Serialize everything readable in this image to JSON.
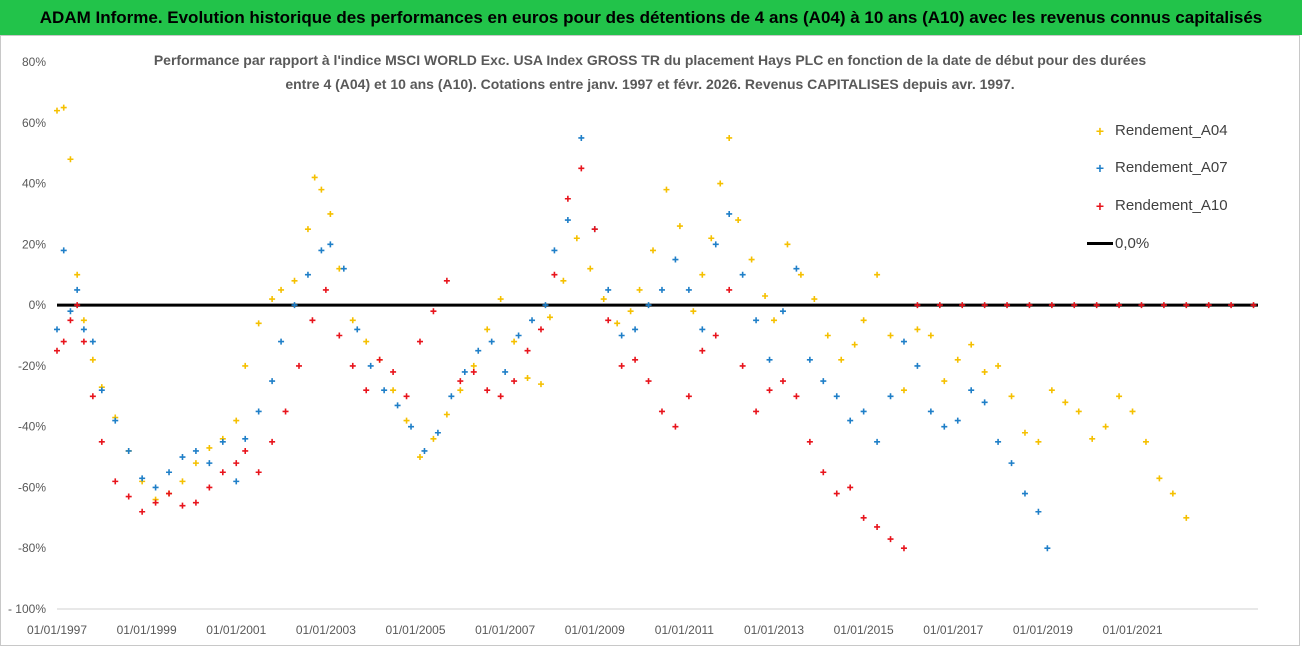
{
  "banner": {
    "title": "ADAM Informe. Evolution historique des performances en euros pour des détentions de 4 ans (A04) à 10 ans (A10) avec les revenus connus capitalisés"
  },
  "chart_data": {
    "type": "scatter",
    "title_line1": "Performance par rapport à l'indice MSCI WORLD Exc. USA Index GROSS TR  du placement Hays PLC en fonction de la date de début pour des durées",
    "title_line2": "entre 4 (A04) et 10 ans (A10). Cotations entre janv. 1997 et févr. 2026. Revenus CAPITALISES depuis avr. 1997.",
    "xlabel": "",
    "ylabel": "",
    "xlim": [
      1997.0,
      2023.8
    ],
    "ylim": [
      -100,
      80
    ],
    "y_ticks": [
      {
        "value": 80,
        "label": "80%"
      },
      {
        "value": 60,
        "label": "60%"
      },
      {
        "value": 40,
        "label": "40%"
      },
      {
        "value": 20,
        "label": "20%"
      },
      {
        "value": 0,
        "label": "0%"
      },
      {
        "value": -20,
        "label": "-20%"
      },
      {
        "value": -40,
        "label": "-40%"
      },
      {
        "value": -60,
        "label": "-60%"
      },
      {
        "value": -80,
        "label": "-80%"
      },
      {
        "value": -100,
        "label": "- 100%"
      }
    ],
    "x_ticks": [
      {
        "value": 1997.0,
        "label": "01/01/1997"
      },
      {
        "value": 1999.0,
        "label": "01/01/1999"
      },
      {
        "value": 2001.0,
        "label": "01/01/2001"
      },
      {
        "value": 2003.0,
        "label": "01/01/2003"
      },
      {
        "value": 2005.0,
        "label": "01/01/2005"
      },
      {
        "value": 2007.0,
        "label": "01/01/2007"
      },
      {
        "value": 2009.0,
        "label": "01/01/2009"
      },
      {
        "value": 2011.0,
        "label": "01/01/2011"
      },
      {
        "value": 2013.0,
        "label": "01/01/2013"
      },
      {
        "value": 2015.0,
        "label": "01/01/2015"
      },
      {
        "value": 2017.0,
        "label": "01/01/2017"
      },
      {
        "value": 2019.0,
        "label": "01/01/2019"
      },
      {
        "value": 2021.0,
        "label": "01/01/2021"
      }
    ],
    "grid": false,
    "legend_position": "top-right",
    "series": [
      {
        "name": "Rendement_A04",
        "color": "#f5c000",
        "marker": "+",
        "x": [
          1997.0,
          1997.15,
          1997.3,
          1997.45,
          1997.6,
          1997.8,
          1998.0,
          1998.3,
          1998.6,
          1998.9,
          1999.2,
          1999.5,
          1999.8,
          2000.1,
          2000.4,
          2000.7,
          2001.0,
          2001.2,
          2001.5,
          2001.8,
          2002.0,
          2002.3,
          2002.6,
          2002.75,
          2002.9,
          2003.1,
          2003.3,
          2003.6,
          2003.9,
          2004.2,
          2004.5,
          2004.8,
          2005.1,
          2005.4,
          2005.7,
          2006.0,
          2006.3,
          2006.6,
          2006.9,
          2007.2,
          2007.5,
          2007.8,
          2008.0,
          2008.3,
          2008.6,
          2008.9,
          2009.2,
          2009.5,
          2009.8,
          2010.0,
          2010.3,
          2010.6,
          2010.9,
          2011.2,
          2011.4,
          2011.6,
          2011.8,
          2012.0,
          2012.2,
          2012.5,
          2012.8,
          2013.0,
          2013.3,
          2013.6,
          2013.9,
          2014.2,
          2014.5,
          2014.8,
          2015.0,
          2015.3,
          2015.6,
          2015.9,
          2016.2,
          2016.5,
          2016.8,
          2017.1,
          2017.4,
          2017.7,
          2018.0,
          2018.3,
          2018.6,
          2018.9,
          2019.2,
          2019.5,
          2019.8,
          2020.1,
          2020.4,
          2020.7,
          2021.0,
          2021.3,
          2021.6,
          2021.9,
          2022.2
        ],
        "y": [
          64,
          65,
          48,
          10,
          -5,
          -18,
          -27,
          -37,
          -48,
          -58,
          -64,
          -62,
          -58,
          -52,
          -47,
          -44,
          -38,
          -20,
          -6,
          2,
          5,
          8,
          25,
          42,
          38,
          30,
          12,
          -5,
          -12,
          -18,
          -28,
          -38,
          -50,
          -44,
          -36,
          -28,
          -20,
          -8,
          2,
          -12,
          -24,
          -26,
          -4,
          8,
          22,
          12,
          2,
          -6,
          -2,
          5,
          18,
          38,
          26,
          -2,
          10,
          22,
          40,
          55,
          28,
          15,
          3,
          -5,
          20,
          10,
          2,
          -10,
          -18,
          -13,
          -5,
          10,
          -10,
          -28,
          -8,
          -10,
          -25,
          -18,
          -13,
          -22,
          -20,
          -30,
          -42,
          -45,
          -28,
          -32,
          -35,
          -44,
          -40,
          -30,
          -35,
          -45,
          -57,
          -62,
          -70
        ]
      },
      {
        "name": "Rendement_A07",
        "color": "#1f7fc8",
        "marker": "+",
        "x": [
          1997.0,
          1997.15,
          1997.3,
          1997.45,
          1997.6,
          1997.8,
          1998.0,
          1998.3,
          1998.6,
          1998.9,
          1999.2,
          1999.5,
          1999.8,
          2000.1,
          2000.4,
          2000.7,
          2001.0,
          2001.2,
          2001.5,
          2001.8,
          2002.0,
          2002.3,
          2002.6,
          2002.9,
          2003.1,
          2003.4,
          2003.7,
          2004.0,
          2004.3,
          2004.6,
          2004.9,
          2005.2,
          2005.5,
          2005.8,
          2006.1,
          2006.4,
          2006.7,
          2007.0,
          2007.3,
          2007.6,
          2007.9,
          2008.1,
          2008.4,
          2008.7,
          2009.0,
          2009.3,
          2009.6,
          2009.9,
          2010.2,
          2010.5,
          2010.8,
          2011.1,
          2011.4,
          2011.7,
          2012.0,
          2012.3,
          2012.6,
          2012.9,
          2013.2,
          2013.5,
          2013.8,
          2014.1,
          2014.4,
          2014.7,
          2015.0,
          2015.3,
          2015.6,
          2015.9,
          2016.2,
          2016.5,
          2016.8,
          2017.1,
          2017.4,
          2017.7,
          2018.0,
          2018.3,
          2018.6,
          2018.9,
          2019.1
        ],
        "y": [
          -8,
          18,
          -2,
          5,
          -8,
          -12,
          -28,
          -38,
          -48,
          -57,
          -60,
          -55,
          -50,
          -48,
          -52,
          -45,
          -58,
          -44,
          -35,
          -25,
          -12,
          0,
          10,
          18,
          20,
          12,
          -8,
          -20,
          -28,
          -33,
          -40,
          -48,
          -42,
          -30,
          -22,
          -15,
          -12,
          -22,
          -10,
          -5,
          0,
          18,
          28,
          55,
          25,
          5,
          -10,
          -8,
          0,
          5,
          15,
          5,
          -8,
          20,
          30,
          10,
          -5,
          -18,
          -2,
          12,
          -18,
          -25,
          -30,
          -38,
          -35,
          -45,
          -30,
          -12,
          -20,
          -35,
          -40,
          -38,
          -28,
          -32,
          -45,
          -52,
          -62,
          -68,
          -80
        ]
      },
      {
        "name": "Rendement_A10",
        "color": "#e8141c",
        "marker": "+",
        "x": [
          1997.0,
          1997.15,
          1997.3,
          1997.45,
          1997.6,
          1997.8,
          1998.0,
          1998.3,
          1998.6,
          1998.9,
          1999.2,
          1999.5,
          1999.8,
          2000.1,
          2000.4,
          2000.7,
          2001.0,
          2001.2,
          2001.5,
          2001.8,
          2002.1,
          2002.4,
          2002.7,
          2003.0,
          2003.3,
          2003.6,
          2003.9,
          2004.2,
          2004.5,
          2004.8,
          2005.1,
          2005.4,
          2005.7,
          2006.0,
          2006.3,
          2006.6,
          2006.9,
          2007.2,
          2007.5,
          2007.8,
          2008.1,
          2008.4,
          2008.7,
          2009.0,
          2009.3,
          2009.6,
          2009.9,
          2010.2,
          2010.5,
          2010.8,
          2011.1,
          2011.4,
          2011.7,
          2012.0,
          2012.3,
          2012.6,
          2012.9,
          2013.2,
          2013.5,
          2013.8,
          2014.1,
          2014.4,
          2014.7,
          2015.0,
          2015.3,
          2015.6,
          2015.9,
          2016.2,
          2016.7,
          2017.2,
          2017.7,
          2018.2,
          2018.7,
          2019.2,
          2019.7,
          2020.2,
          2020.7,
          2021.2,
          2021.7,
          2022.2,
          2022.7,
          2023.2,
          2023.7
        ],
        "y": [
          -15,
          -12,
          -5,
          0,
          -12,
          -30,
          -45,
          -58,
          -63,
          -68,
          -65,
          -62,
          -66,
          -65,
          -60,
          -55,
          -52,
          -48,
          -55,
          -45,
          -35,
          -20,
          -5,
          5,
          -10,
          -20,
          -28,
          -18,
          -22,
          -30,
          -12,
          -2,
          8,
          -25,
          -22,
          -28,
          -30,
          -25,
          -15,
          -8,
          10,
          35,
          45,
          25,
          -5,
          -20,
          -18,
          -25,
          -35,
          -40,
          -30,
          -15,
          -10,
          5,
          -20,
          -35,
          -28,
          -25,
          -30,
          -45,
          -55,
          -62,
          -60,
          -70,
          -73,
          -77,
          -80,
          0,
          0,
          0,
          0,
          0,
          0,
          0,
          0,
          0,
          0,
          0,
          0,
          0,
          0,
          0,
          0
        ]
      }
    ],
    "reference_line": {
      "name": "0,0%",
      "value": 0,
      "color": "#000000"
    }
  }
}
